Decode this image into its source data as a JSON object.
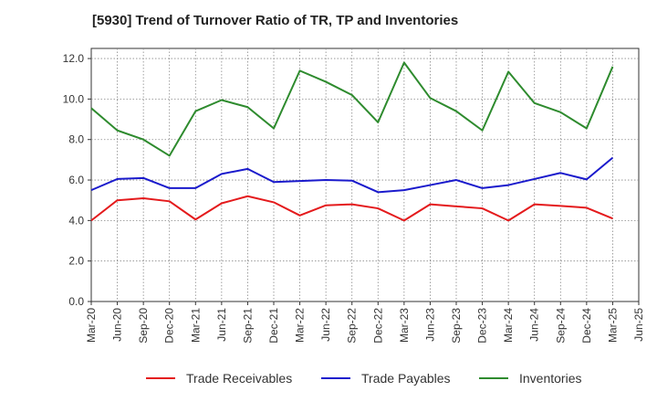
{
  "title": "[5930]  Trend of Turnover Ratio of TR, TP and Inventories",
  "chart_data": {
    "type": "line",
    "title": "[5930]  Trend of Turnover Ratio of TR, TP and Inventories",
    "x_ticks": [
      "Mar-20",
      "Jun-20",
      "Sep-20",
      "Dec-20",
      "Mar-21",
      "Jun-21",
      "Sep-21",
      "Dec-21",
      "Mar-22",
      "Jun-22",
      "Sep-22",
      "Dec-22",
      "Mar-23",
      "Jun-23",
      "Sep-23",
      "Dec-23",
      "Mar-24",
      "Jun-24",
      "Sep-24",
      "Dec-24",
      "Mar-25",
      "Jun-25"
    ],
    "x": [
      "Mar-20",
      "Jun-20",
      "Sep-20",
      "Dec-20",
      "Mar-21",
      "Jun-21",
      "Sep-21",
      "Dec-21",
      "Mar-22",
      "Jun-22",
      "Sep-22",
      "Dec-22",
      "Mar-23",
      "Jun-23",
      "Sep-23",
      "Dec-23",
      "Mar-24",
      "Jun-24",
      "Sep-24",
      "Dec-24",
      "Mar-25"
    ],
    "y_ticks": [
      "0.0",
      "2.0",
      "4.0",
      "6.0",
      "8.0",
      "10.0",
      "12.0"
    ],
    "ylim": [
      0,
      12.5
    ],
    "grid": true,
    "legend_position": "bottom",
    "series": [
      {
        "name": "Trade Receivables",
        "color": "#e41a1c",
        "values": [
          4.0,
          5.0,
          5.1,
          4.95,
          4.05,
          4.85,
          5.2,
          4.9,
          4.25,
          4.75,
          4.8,
          4.6,
          4.0,
          4.8,
          4.7,
          4.6,
          4.0,
          4.8,
          4.72,
          4.63,
          4.1
        ]
      },
      {
        "name": "Trade Payables",
        "color": "#1a1acc",
        "values": [
          5.5,
          6.05,
          6.1,
          5.6,
          5.6,
          6.3,
          6.55,
          5.9,
          5.95,
          6.0,
          5.97,
          5.4,
          5.5,
          5.75,
          6.0,
          5.6,
          5.75,
          6.05,
          6.35,
          6.03,
          7.1
        ]
      },
      {
        "name": "Inventories",
        "color": "#2e8b2e",
        "values": [
          9.55,
          8.45,
          8.0,
          7.2,
          9.4,
          9.95,
          9.6,
          8.55,
          11.4,
          10.85,
          10.2,
          8.85,
          11.8,
          10.05,
          9.4,
          8.45,
          11.35,
          9.8,
          9.35,
          8.55,
          11.6
        ]
      }
    ]
  }
}
